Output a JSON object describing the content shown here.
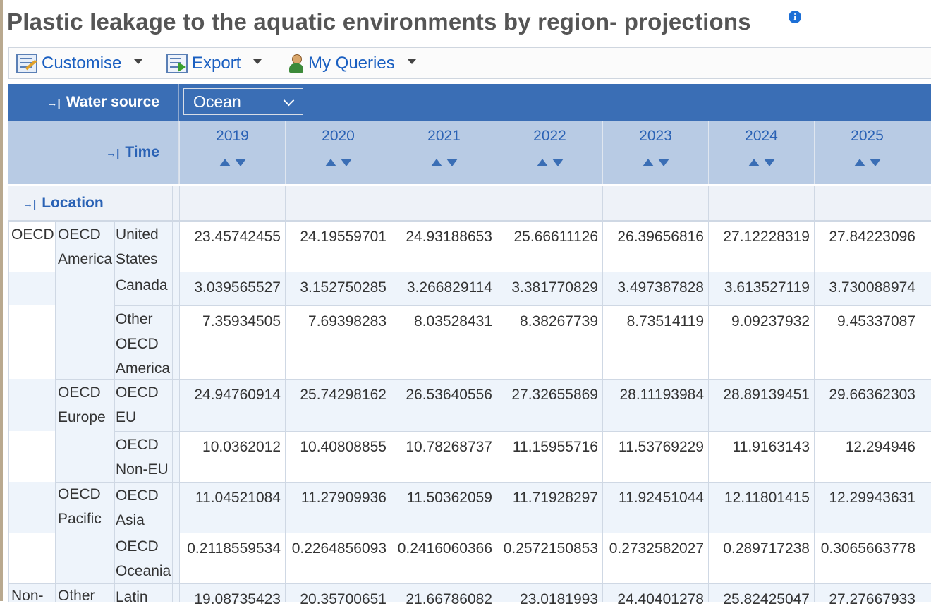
{
  "page": {
    "title": "Plastic leakage to the aquatic environments by region- projections",
    "info_icon": "i"
  },
  "toolbar": {
    "customise_label": "Customise",
    "export_label": "Export",
    "queries_label": "My Queries"
  },
  "filters": {
    "water_source_label": "Water source",
    "water_source_value": "Ocean",
    "time_label": "Time",
    "location_label": "Location"
  },
  "years": [
    "2019",
    "2020",
    "2021",
    "2022",
    "2023",
    "2024",
    "2025"
  ],
  "groups": {
    "oecd": "OECD",
    "oecd_america": "OECD America",
    "oecd_europe": "OECD Europe",
    "oecd_pacific": "OECD Pacific",
    "non_oecd": "Non-",
    "other": "Other"
  },
  "rows": [
    {
      "label": "United States",
      "values": [
        "23.45742455",
        "24.19559701",
        "24.93188653",
        "25.66611126",
        "26.39656816",
        "27.12228319",
        "27.84223096"
      ]
    },
    {
      "label": "Canada",
      "values": [
        "3.039565527",
        "3.152750285",
        "3.266829114",
        "3.381770829",
        "3.497387828",
        "3.613527119",
        "3.730088974"
      ]
    },
    {
      "label": "Other OECD America",
      "values": [
        "7.35934505",
        "7.69398283",
        "8.03528431",
        "8.38267739",
        "8.73514119",
        "9.09237932",
        "9.45337087"
      ]
    },
    {
      "label": "OECD EU",
      "values": [
        "24.94760914",
        "25.74298162",
        "26.53640556",
        "27.32655869",
        "28.11193984",
        "28.89139451",
        "29.66362303"
      ]
    },
    {
      "label": "OECD Non-EU",
      "values": [
        "10.0362012",
        "10.40808855",
        "10.78268737",
        "11.15955716",
        "11.53769229",
        "11.9163143",
        "12.294946"
      ]
    },
    {
      "label": "OECD Asia",
      "values": [
        "11.04521084",
        "11.27909936",
        "11.50362059",
        "11.71928297",
        "11.92451044",
        "12.11801415",
        "12.29943631"
      ]
    },
    {
      "label": "OECD Oceania",
      "values": [
        "0.2118559534",
        "0.2264856093",
        "0.2416060366",
        "0.2572150853",
        "0.2732582027",
        "0.289717238",
        "0.3065663778"
      ]
    },
    {
      "label": "Latin",
      "values": [
        "19.08735423",
        "20.35700651",
        "21.66786082",
        "23.0181993",
        "24.40401278",
        "25.82425047",
        "27.27667933"
      ]
    }
  ]
}
